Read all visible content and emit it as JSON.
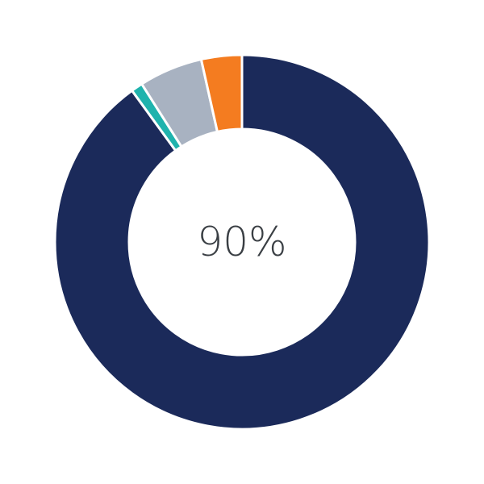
{
  "chart_data": {
    "type": "pie",
    "variant": "donut",
    "center_label": "90%",
    "slices": [
      {
        "value": 90,
        "color": "#1b2a5a"
      },
      {
        "value": 1,
        "color": "#1fb3ad"
      },
      {
        "value": 5.5,
        "color": "#a8b2c1"
      },
      {
        "value": 3.5,
        "color": "#f47c20"
      }
    ],
    "start": "top",
    "direction": "clockwise",
    "legend": "none"
  }
}
